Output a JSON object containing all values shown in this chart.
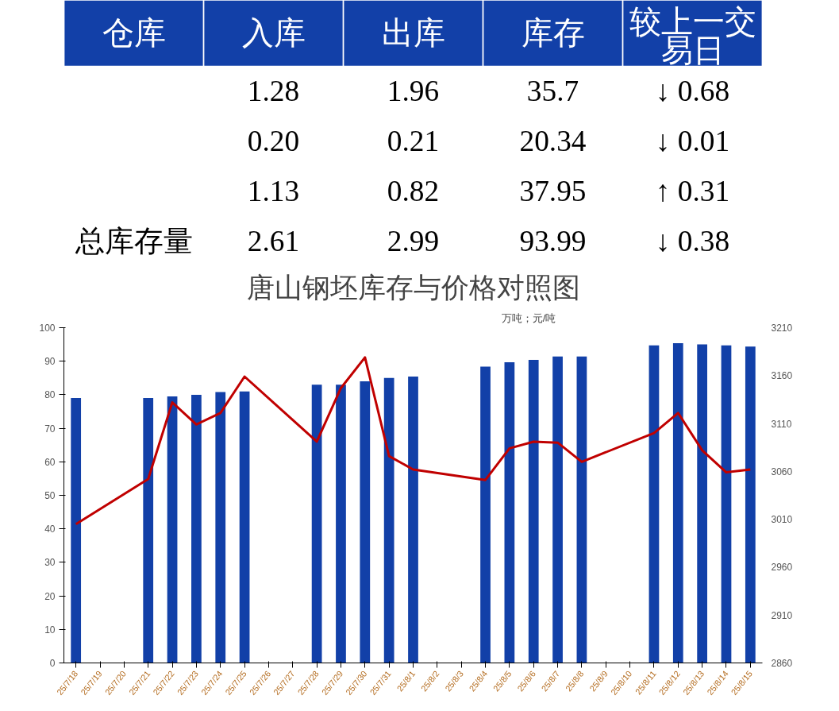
{
  "chart_data": [
    {
      "type": "other",
      "categories": [
        "仓库",
        "入库",
        "出库",
        "库存",
        "较上一交易日"
      ],
      "cell_labels": [
        [
          null,
          "1.28",
          "1.96",
          "35.7",
          "↓ 0.68"
        ],
        [
          null,
          "0.20",
          "0.21",
          "20.34",
          "↓ 0.01"
        ],
        [
          null,
          "1.13",
          "0.82",
          "37.95",
          "↑ 0.31"
        ],
        [
          "总库存量",
          "2.61",
          "2.99",
          "93.99",
          "↓ 0.38"
        ]
      ],
      "colors": [
        "#1240a8",
        "#1240a8",
        "#1240a8",
        "#1240a8",
        "#1240a8"
      ]
    },
    {
      "type": "bar",
      "title": "唐山钢坯库存与价格对照图",
      "annotations": [
        "万吨；元/吨"
      ],
      "categories": [
        "25/7/18",
        "25/7/19",
        "25/7/20",
        "25/7/21",
        "25/7/22",
        "25/7/23",
        "25/7/24",
        "25/7/25",
        "25/7/26",
        "25/7/27",
        "25/7/28",
        "25/7/29",
        "25/7/30",
        "25/7/31",
        "25/8/1",
        "25/8/2",
        "25/8/3",
        "25/8/4",
        "25/8/5",
        "25/8/6",
        "25/8/7",
        "25/8/8",
        "25/8/9",
        "25/8/10",
        "25/8/11",
        "25/8/12",
        "25/8/13",
        "25/8/14",
        "25/8/15"
      ],
      "series": [
        {
          "type": "bar",
          "color": "#1240a8",
          "values": [
            79,
            null,
            null,
            79,
            79.5,
            80,
            80.8,
            81,
            null,
            null,
            83,
            83,
            84,
            85,
            85.4,
            null,
            null,
            88.4,
            89.7,
            90.4,
            91.4,
            91.4,
            null,
            null,
            94.7,
            95.4,
            95,
            94.7,
            94.4
          ]
        },
        {
          "type": "line",
          "axis": "y2",
          "color": "#c00000",
          "values": [
            3005,
            null,
            null,
            3052,
            3132,
            3109,
            3121,
            3159,
            null,
            null,
            3091,
            3147,
            3179,
            3076,
            3062,
            null,
            null,
            3051,
            3084,
            3091,
            3090,
            3070,
            null,
            null,
            3100,
            3121,
            3082,
            3059,
            3062
          ]
        }
      ],
      "ylim": [
        0,
        100
      ],
      "yticks": [
        0,
        10,
        20,
        30,
        40,
        50,
        60,
        70,
        80,
        90,
        100
      ],
      "y2lim": [
        2860,
        3210
      ],
      "y2ticks": [
        2860,
        2910,
        2960,
        3010,
        3060,
        3110,
        3160,
        3210
      ],
      "grid": false,
      "marker": "none",
      "line_style": "solid"
    }
  ]
}
